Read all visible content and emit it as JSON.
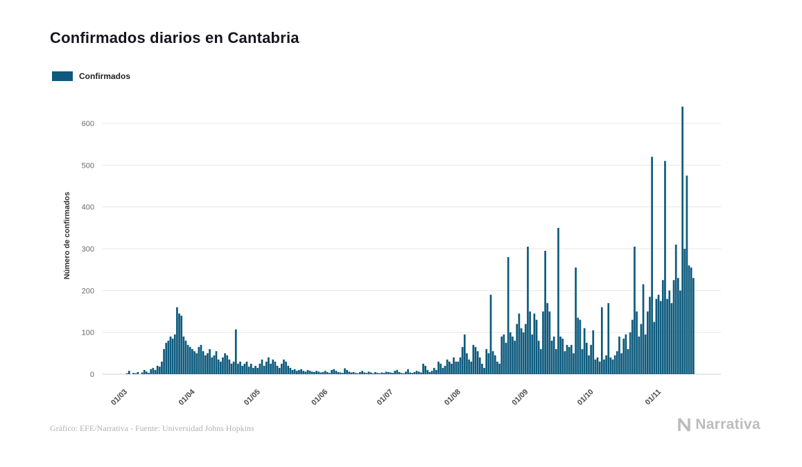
{
  "title": "Confirmados diarios en Cantabria",
  "legend": {
    "label": "Confirmados",
    "color": "#0e5a7d"
  },
  "footer": {
    "credit": "Gráfico: EFE/Narrativa - Fuente: Universidad Johns Hopkins"
  },
  "logo": {
    "text": "Narrativa"
  },
  "chart_data": {
    "type": "bar",
    "title": "Confirmados diarios en Cantabria",
    "xlabel": "",
    "ylabel": "Número de confirmados",
    "ylim": [
      0,
      660
    ],
    "yticks": [
      0,
      100,
      200,
      300,
      400,
      500,
      600
    ],
    "grid": true,
    "legend_position": "top-left",
    "bar_color": "#0e5a7d",
    "x_tick_labels": [
      "01/03",
      "01/04",
      "01/05",
      "01/06",
      "01/07",
      "01/08",
      "01/09",
      "01/10",
      "01/11"
    ],
    "x_tick_day_offsets": [
      0,
      31,
      61,
      92,
      122,
      153,
      184,
      214,
      245
    ],
    "x_unit": "daily, from 01/03 to 17/11",
    "series": [
      {
        "name": "Confirmados",
        "values": [
          0,
          2,
          8,
          0,
          3,
          2,
          5,
          0,
          4,
          10,
          6,
          3,
          12,
          15,
          10,
          20,
          18,
          30,
          60,
          75,
          80,
          90,
          85,
          95,
          160,
          145,
          140,
          90,
          80,
          70,
          65,
          60,
          55,
          50,
          65,
          70,
          55,
          45,
          50,
          60,
          40,
          45,
          55,
          35,
          30,
          40,
          50,
          45,
          35,
          25,
          30,
          107,
          25,
          30,
          20,
          25,
          30,
          18,
          25,
          15,
          20,
          15,
          25,
          35,
          20,
          30,
          40,
          25,
          35,
          30,
          20,
          15,
          25,
          35,
          30,
          20,
          15,
          10,
          12,
          8,
          10,
          12,
          8,
          6,
          10,
          8,
          6,
          5,
          8,
          6,
          4,
          5,
          8,
          5,
          3,
          10,
          12,
          8,
          5,
          4,
          3,
          14,
          10,
          6,
          4,
          5,
          3,
          2,
          5,
          8,
          4,
          3,
          6,
          4,
          2,
          5,
          3,
          2,
          4,
          3,
          6,
          5,
          4,
          3,
          8,
          10,
          5,
          3,
          2,
          6,
          12,
          4,
          3,
          5,
          8,
          6,
          4,
          25,
          20,
          10,
          5,
          8,
          15,
          10,
          30,
          25,
          15,
          20,
          35,
          30,
          25,
          40,
          30,
          30,
          40,
          65,
          95,
          50,
          35,
          30,
          70,
          65,
          55,
          40,
          25,
          15,
          60,
          50,
          190,
          55,
          45,
          30,
          25,
          90,
          95,
          75,
          280,
          100,
          90,
          80,
          120,
          145,
          110,
          100,
          120,
          305,
          150,
          95,
          145,
          130,
          80,
          60,
          150,
          295,
          170,
          150,
          80,
          90,
          60,
          350,
          90,
          85,
          55,
          70,
          65,
          70,
          50,
          255,
          135,
          130,
          60,
          110,
          75,
          45,
          70,
          105,
          35,
          40,
          30,
          160,
          35,
          45,
          170,
          40,
          35,
          45,
          55,
          90,
          50,
          85,
          95,
          60,
          100,
          130,
          305,
          150,
          90,
          120,
          215,
          95,
          150,
          185,
          520,
          125,
          180,
          190,
          175,
          225,
          510,
          180,
          200,
          170,
          225,
          310,
          230,
          200,
          640,
          300,
          475,
          260,
          255,
          230
        ]
      }
    ]
  }
}
